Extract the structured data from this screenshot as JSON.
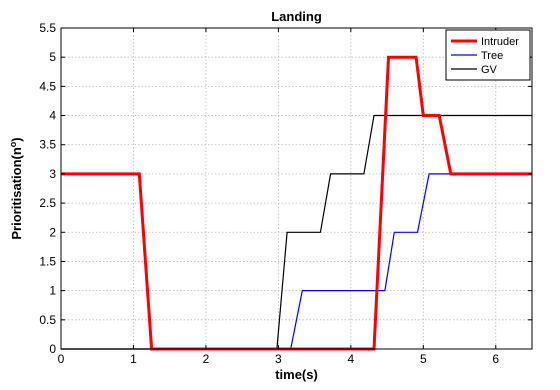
{
  "chart_data": {
    "type": "line",
    "title": "Landing",
    "xlabel": "time(s)",
    "ylabel_main": "Prioritisation(n",
    "ylabel_sup": "o",
    "ylabel_close": ")",
    "xlim": [
      0,
      6.5
    ],
    "ylim": [
      0,
      5.5
    ],
    "xticks": [
      0,
      1,
      2,
      3,
      4,
      5,
      6
    ],
    "xtick_labels": [
      "0",
      "1",
      "2",
      "3",
      "4",
      "5",
      "6"
    ],
    "yticks": [
      0,
      0.5,
      1,
      1.5,
      2,
      2.5,
      3,
      3.5,
      4,
      4.5,
      5,
      5.5
    ],
    "ytick_labels": [
      "0",
      "0.5",
      "1",
      "1.5",
      "2",
      "2.5",
      "3",
      "3.5",
      "4",
      "4.5",
      "5",
      "5.5"
    ],
    "grid": true,
    "legend_position": "top-right",
    "series": [
      {
        "name": "Intruder",
        "color": "#ff0000",
        "x": [
          0,
          1.08,
          1.25,
          4.32,
          4.52,
          4.9,
          5.0,
          5.22,
          5.38,
          6.5
        ],
        "y": [
          3,
          3,
          0,
          0,
          5,
          5,
          4,
          4,
          3,
          3
        ]
      },
      {
        "name": "Tree",
        "color": "#0000ff",
        "x": [
          0,
          3.17,
          3.33,
          4.47,
          4.6,
          4.92,
          5.08,
          5.4,
          5.52,
          6.5
        ],
        "y": [
          0,
          0,
          1,
          1,
          2,
          2,
          3,
          3,
          3,
          3
        ]
      },
      {
        "name": "GV",
        "color": "#000000",
        "x": [
          0,
          2.98,
          3.12,
          3.58,
          3.72,
          4.18,
          4.32,
          6.5
        ],
        "y": [
          0,
          0,
          2,
          2,
          3,
          3,
          4,
          4
        ]
      }
    ]
  }
}
